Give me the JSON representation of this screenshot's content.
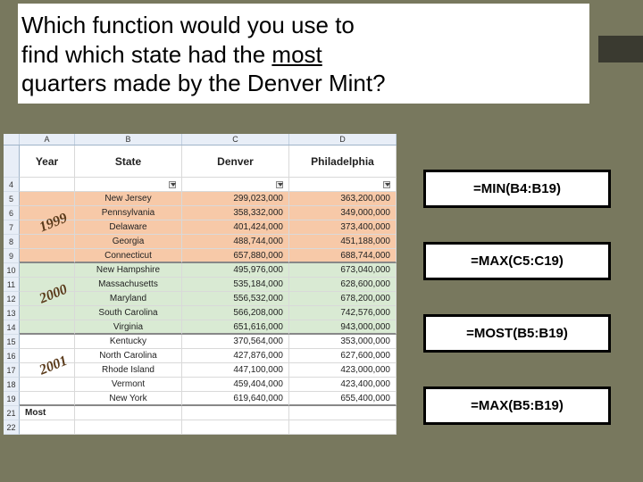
{
  "slide": {
    "background_color": "#78785e",
    "question_box_color": "#ffffff",
    "accent_color": "#3a3a30"
  },
  "question": {
    "line1": "Which function would you use to",
    "line2_pre": "find which state had the ",
    "line2_underlined": "most",
    "line3": "quarters made by the Denver Mint?"
  },
  "sheet": {
    "col_headers": [
      "",
      "A",
      "B",
      "C",
      "D"
    ],
    "headers": {
      "year": "Year",
      "state": "State",
      "denver": "Denver",
      "philly": "Philadelphia"
    },
    "groups": [
      {
        "year": "1999",
        "bg": "#f7c9a8",
        "rows": [
          {
            "n": 5,
            "state": "New Jersey",
            "d": "299,023,000",
            "p": "363,200,000"
          },
          {
            "n": 6,
            "state": "Pennsylvania",
            "d": "358,332,000",
            "p": "349,000,000"
          },
          {
            "n": 7,
            "state": "Delaware",
            "d": "401,424,000",
            "p": "373,400,000"
          },
          {
            "n": 8,
            "state": "Georgia",
            "d": "488,744,000",
            "p": "451,188,000"
          },
          {
            "n": 9,
            "state": "Connecticut",
            "d": "657,880,000",
            "p": "688,744,000"
          }
        ]
      },
      {
        "year": "2000",
        "bg": "#d9ead3",
        "rows": [
          {
            "n": 10,
            "state": "New Hampshire",
            "d": "495,976,000",
            "p": "673,040,000"
          },
          {
            "n": 11,
            "state": "Massachusetts",
            "d": "535,184,000",
            "p": "628,600,000"
          },
          {
            "n": 12,
            "state": "Maryland",
            "d": "556,532,000",
            "p": "678,200,000"
          },
          {
            "n": 13,
            "state": "South Carolina",
            "d": "566,208,000",
            "p": "742,576,000"
          },
          {
            "n": 14,
            "state": "Virginia",
            "d": "651,616,000",
            "p": "943,000,000"
          }
        ]
      },
      {
        "year": "2001",
        "bg": "#ffffff",
        "rows": [
          {
            "n": 15,
            "state": "Kentucky",
            "d": "370,564,000",
            "p": "353,000,000"
          },
          {
            "n": 16,
            "state": "North Carolina",
            "d": "427,876,000",
            "p": "627,600,000"
          },
          {
            "n": 17,
            "state": "Rhode Island",
            "d": "447,100,000",
            "p": "423,000,000"
          },
          {
            "n": 18,
            "state": "Vermont",
            "d": "459,404,000",
            "p": "423,400,000"
          },
          {
            "n": 19,
            "state": "New York",
            "d": "619,640,000",
            "p": "655,400,000"
          }
        ]
      }
    ],
    "most_label": "Most",
    "trailing_rows": [
      21,
      22
    ]
  },
  "answers": [
    "=MIN(B4:B19)",
    "=MAX(C5:C19)",
    "=MOST(B5:B19)",
    "=MAX(B5:B19)"
  ]
}
